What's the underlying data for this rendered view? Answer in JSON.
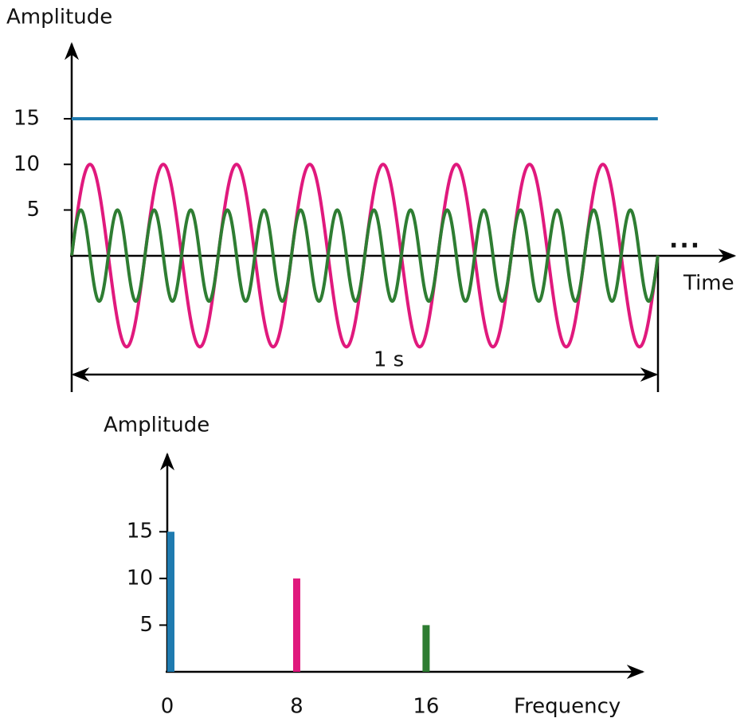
{
  "chart_data": [
    {
      "type": "waveform",
      "y_label": "Amplitude",
      "x_label": "Time",
      "span_label": "1 s",
      "continuation": "...",
      "ylim": [
        -14,
        24
      ],
      "yticks": [
        5,
        10,
        15
      ],
      "xlim": [
        0,
        1.128
      ],
      "span": 1
    },
    {
      "type": "spectrum",
      "y_label": "Amplitude",
      "x_label": "Frequency",
      "x": [
        0,
        8,
        16
      ],
      "values": [
        15,
        10,
        5
      ],
      "colors": [
        "#1f7bb0",
        "#e0197d",
        "#2e7d32"
      ],
      "ylim": [
        0,
        23.3
      ],
      "yticks": [
        5,
        10,
        15
      ],
      "xlim": [
        0,
        29.3
      ],
      "xticks": [
        0,
        8,
        16
      ]
    }
  ]
}
